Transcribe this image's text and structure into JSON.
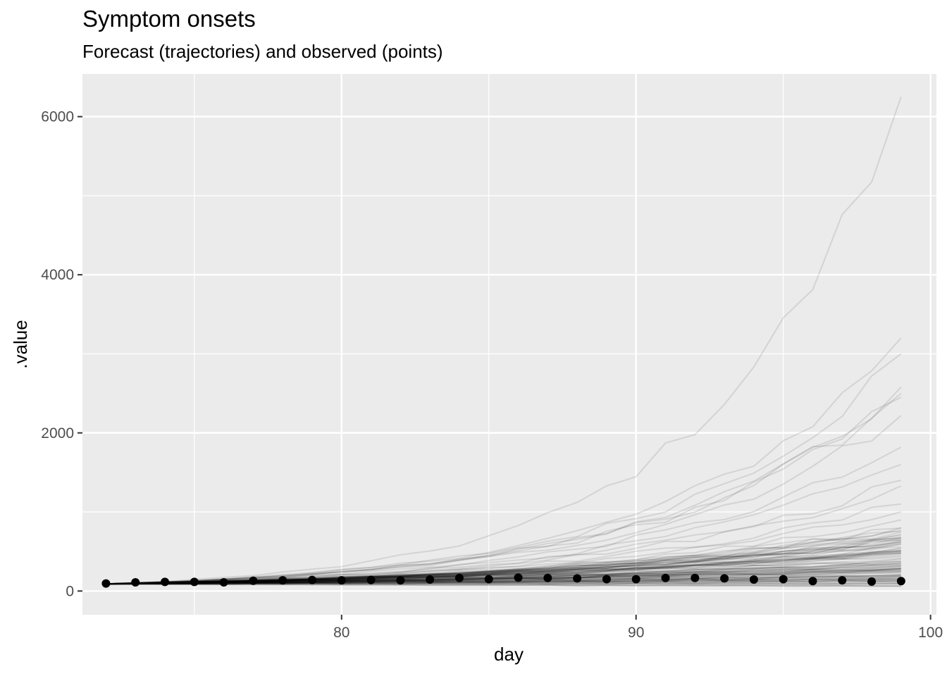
{
  "chart_data": {
    "type": "line",
    "title": "Symptom onsets",
    "subtitle": "Forecast (trajectories) and observed (points)",
    "xlabel": "day",
    "ylabel": ".value",
    "xlim": [
      71.2,
      100.2
    ],
    "ylim": [
      -300,
      6540
    ],
    "x_ticks": [
      80,
      90,
      100
    ],
    "x_tick_labels": [
      "80",
      "90",
      "100"
    ],
    "y_ticks": [
      0,
      2000,
      4000,
      6000
    ],
    "y_tick_labels": [
      "0",
      "2000",
      "4000",
      "6000"
    ],
    "grid": true,
    "legend": "none",
    "observed": {
      "x": [
        72,
        73,
        74,
        75,
        76,
        77,
        78,
        79,
        80,
        81,
        82,
        83,
        84,
        85,
        86,
        87,
        88,
        89,
        90,
        91,
        92,
        93,
        94,
        95,
        96,
        97,
        98,
        99
      ],
      "y": [
        95,
        110,
        115,
        115,
        110,
        130,
        135,
        140,
        135,
        140,
        135,
        145,
        165,
        150,
        170,
        165,
        160,
        150,
        150,
        165,
        165,
        160,
        145,
        150,
        125,
        135,
        120,
        125
      ]
    },
    "trajectories": {
      "x_start": 72,
      "x_end": 99,
      "start_value": 90,
      "count": 100,
      "end_values_highlighted": [
        6250,
        3200,
        3000,
        2580,
        2500,
        2450,
        2220,
        1820,
        1600,
        1400,
        1330,
        1100,
        1000,
        900,
        800
      ],
      "end_value_median": 500,
      "end_value_min": 60
    },
    "colors": {
      "panel": "#ebebeb",
      "grid": "#ffffff",
      "trajectory": "#000000",
      "point": "#000000"
    }
  }
}
